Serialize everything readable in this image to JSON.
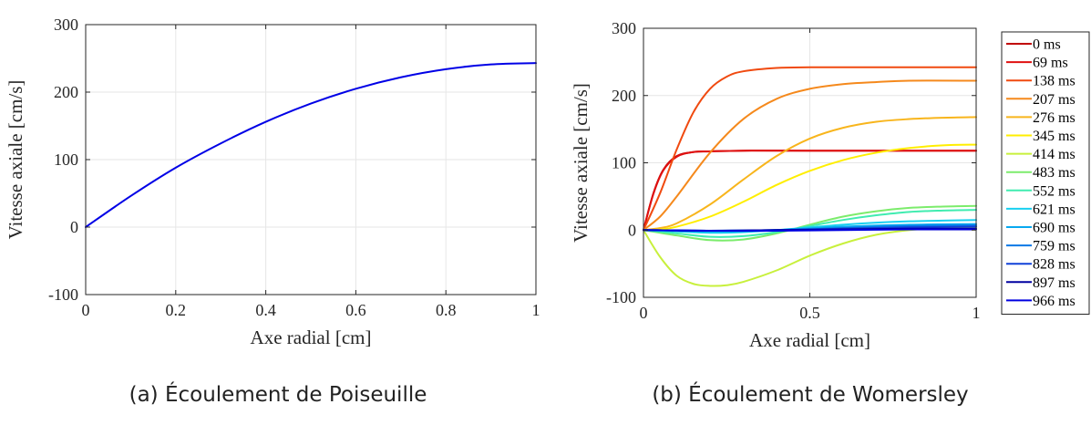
{
  "chart_data": [
    {
      "type": "line",
      "caption": "(a) Écoulement de Poiseuille",
      "xlabel": "Axe radial [cm]",
      "ylabel": "Vitesse axiale [cm/s]",
      "xlim": [
        0,
        1
      ],
      "ylim": [
        -100,
        300
      ],
      "xticks": [
        0,
        0.2,
        0.4,
        0.6,
        0.8,
        1
      ],
      "xtick_labels": [
        "0",
        "0.2",
        "0.4",
        "0.6",
        "0.8",
        "1"
      ],
      "yticks": [
        -100,
        0,
        100,
        200,
        300
      ],
      "ytick_labels": [
        "-100",
        "0",
        "100",
        "200",
        "300"
      ],
      "grid": true,
      "series": [
        {
          "color": "#0000e6",
          "x": [
            0,
            0.1,
            0.2,
            0.3,
            0.4,
            0.5,
            0.6,
            0.7,
            0.8,
            0.9,
            1.0
          ],
          "y": [
            0,
            46,
            88,
            124,
            156,
            183,
            205,
            222,
            234,
            241,
            243
          ]
        }
      ]
    },
    {
      "type": "line",
      "caption": "(b) Écoulement de Womersley",
      "xlabel": "Axe radial [cm]",
      "ylabel": "Vitesse axiale [cm/s]",
      "xlim": [
        0,
        1
      ],
      "ylim": [
        -100,
        300
      ],
      "xticks": [
        0,
        0.5,
        1
      ],
      "xtick_labels": [
        "0",
        "0.5",
        "1"
      ],
      "yticks": [
        -100,
        0,
        100,
        200,
        300
      ],
      "ytick_labels": [
        "-100",
        "0",
        "100",
        "200",
        "300"
      ],
      "grid": true,
      "legend_position": "outside-right",
      "series": [
        {
          "name": "0 ms",
          "color": "#c00000",
          "x": [
            0,
            0.03,
            0.06,
            0.1,
            0.15,
            0.2,
            0.3,
            0.5,
            1.0
          ],
          "y": [
            0,
            55,
            90,
            110,
            116,
            117,
            118,
            118,
            118
          ]
        },
        {
          "name": "69 ms",
          "color": "#e01010",
          "x": [
            0,
            0.03,
            0.06,
            0.1,
            0.15,
            0.2,
            0.3,
            0.5,
            1.0
          ],
          "y": [
            0,
            54,
            89,
            109,
            116,
            117,
            118,
            118,
            118
          ]
        },
        {
          "name": "138 ms",
          "color": "#f04a10",
          "x": [
            0,
            0.05,
            0.1,
            0.15,
            0.2,
            0.25,
            0.3,
            0.4,
            0.5,
            0.7,
            1.0
          ],
          "y": [
            0,
            55,
            120,
            175,
            210,
            228,
            236,
            241,
            242,
            242,
            242
          ]
        },
        {
          "name": "207 ms",
          "color": "#f5891c",
          "x": [
            0,
            0.05,
            0.1,
            0.2,
            0.3,
            0.4,
            0.5,
            0.6,
            0.7,
            0.8,
            1.0
          ],
          "y": [
            0,
            20,
            50,
            115,
            165,
            195,
            210,
            217,
            220,
            222,
            222
          ]
        },
        {
          "name": "276 ms",
          "color": "#f8b51c",
          "x": [
            0,
            0.05,
            0.1,
            0.2,
            0.3,
            0.4,
            0.5,
            0.6,
            0.7,
            0.8,
            0.9,
            1.0
          ],
          "y": [
            0,
            3,
            10,
            38,
            75,
            110,
            136,
            152,
            161,
            165,
            167,
            168
          ]
        },
        {
          "name": "345 ms",
          "color": "#ffee00",
          "x": [
            0,
            0.05,
            0.1,
            0.2,
            0.3,
            0.4,
            0.5,
            0.6,
            0.7,
            0.8,
            0.9,
            1.0
          ],
          "y": [
            0,
            1,
            5,
            20,
            42,
            67,
            88,
            104,
            115,
            122,
            126,
            127
          ]
        },
        {
          "name": "414 ms",
          "color": "#c8f03c",
          "x": [
            0,
            0.05,
            0.1,
            0.15,
            0.2,
            0.25,
            0.3,
            0.4,
            0.5,
            0.6,
            0.7,
            0.8,
            0.9,
            1.0
          ],
          "y": [
            0,
            -40,
            -68,
            -80,
            -83,
            -82,
            -77,
            -60,
            -38,
            -20,
            -7,
            0,
            3,
            4
          ]
        },
        {
          "name": "483 ms",
          "color": "#7cec6c",
          "x": [
            0,
            0.1,
            0.2,
            0.3,
            0.4,
            0.5,
            0.6,
            0.7,
            0.8,
            0.9,
            1.0
          ],
          "y": [
            0,
            -8,
            -15,
            -14,
            -5,
            8,
            20,
            28,
            33,
            35,
            36
          ]
        },
        {
          "name": "552 ms",
          "color": "#40ecb0",
          "x": [
            0,
            0.1,
            0.2,
            0.3,
            0.4,
            0.5,
            0.6,
            0.7,
            0.8,
            0.9,
            1.0
          ],
          "y": [
            0,
            -5,
            -10,
            -9,
            -3,
            6,
            15,
            22,
            27,
            29,
            30
          ]
        },
        {
          "name": "621 ms",
          "color": "#18d0f0",
          "x": [
            0,
            0.1,
            0.2,
            0.3,
            0.4,
            0.5,
            0.6,
            0.7,
            0.8,
            0.9,
            1.0
          ],
          "y": [
            0,
            -2,
            -4,
            -3,
            0,
            4,
            8,
            11,
            13,
            14,
            15
          ]
        },
        {
          "name": "690 ms",
          "color": "#08a8f0",
          "x": [
            0,
            0.2,
            0.4,
            0.6,
            0.8,
            1.0
          ],
          "y": [
            0,
            -2,
            0,
            5,
            8,
            9
          ]
        },
        {
          "name": "759 ms",
          "color": "#0878e6",
          "x": [
            0,
            0.2,
            0.4,
            0.6,
            0.8,
            1.0
          ],
          "y": [
            0,
            -1,
            0,
            3,
            6,
            7
          ]
        },
        {
          "name": "828 ms",
          "color": "#1040d8",
          "x": [
            0,
            0.2,
            0.4,
            0.6,
            0.8,
            1.0
          ],
          "y": [
            0,
            -1,
            0,
            2,
            4,
            5
          ]
        },
        {
          "name": "897 ms",
          "color": "#0000a0",
          "x": [
            0,
            0.2,
            0.4,
            0.6,
            0.8,
            1.0
          ],
          "y": [
            0,
            -1,
            0,
            1,
            2,
            2
          ]
        },
        {
          "name": "966 ms",
          "color": "#0000e0",
          "x": [
            0,
            0.2,
            0.4,
            0.6,
            0.8,
            1.0
          ],
          "y": [
            0,
            -1,
            -1,
            0,
            1,
            1
          ]
        }
      ]
    }
  ]
}
